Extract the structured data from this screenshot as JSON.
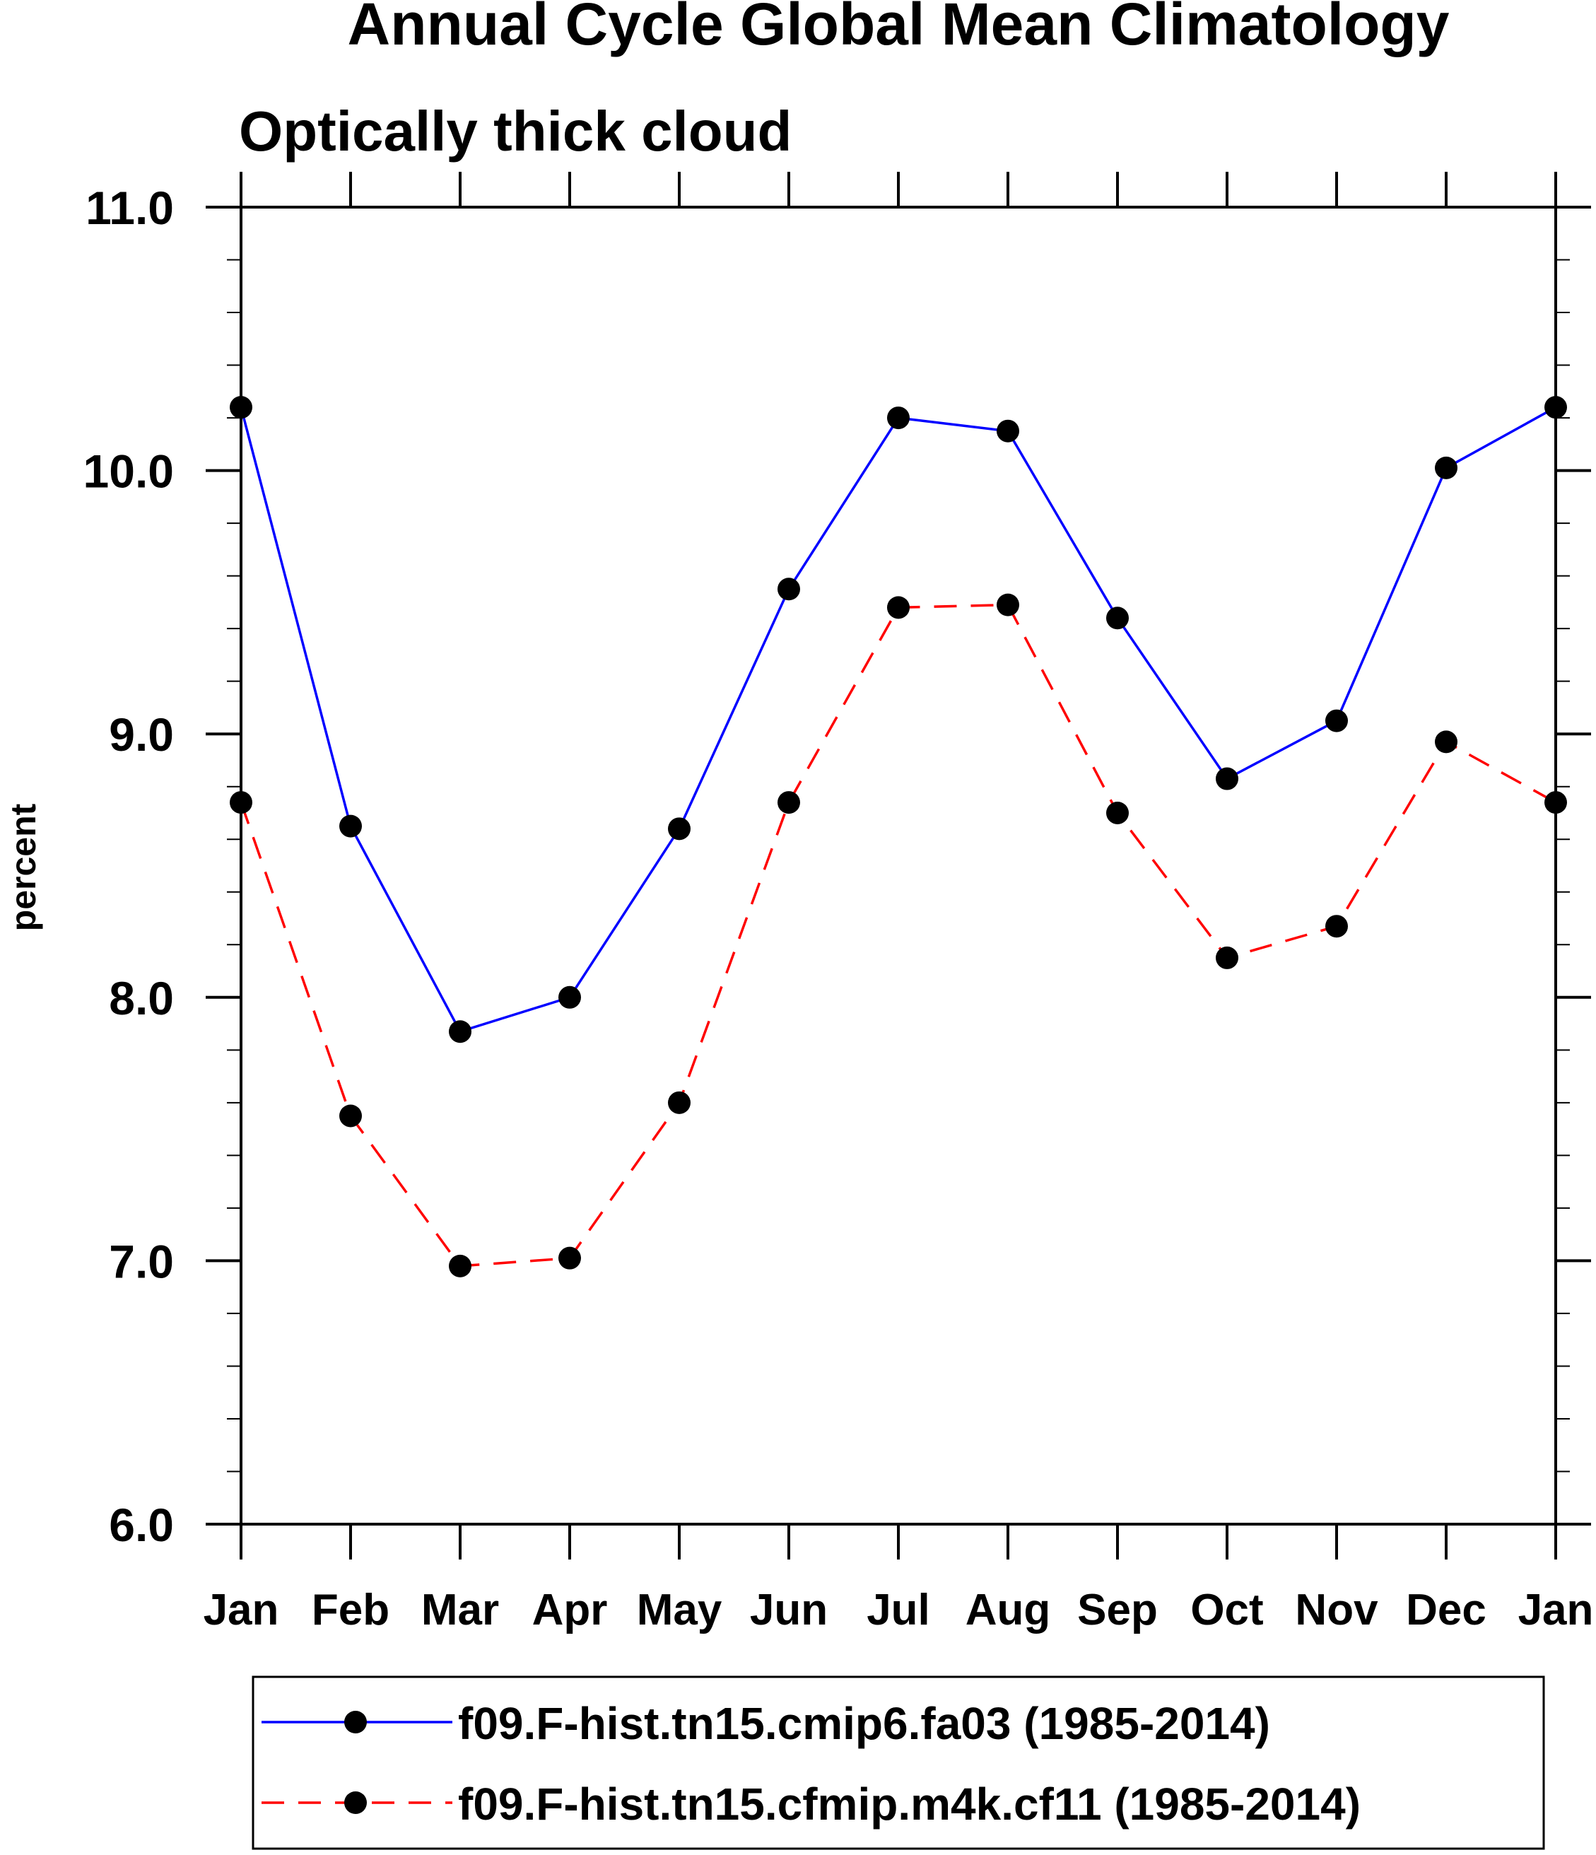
{
  "chart_data": {
    "type": "line",
    "title": "Annual Cycle Global Mean Climatology",
    "subtitle": "Optically thick cloud",
    "xlabel": "",
    "ylabel": "percent",
    "categories": [
      "Jan",
      "Feb",
      "Mar",
      "Apr",
      "May",
      "Jun",
      "Jul",
      "Aug",
      "Sep",
      "Oct",
      "Nov",
      "Dec",
      "Jan"
    ],
    "ylim": [
      6.0,
      11.0
    ],
    "yticks": [
      "6.0",
      "7.0",
      "8.0",
      "9.0",
      "10.0",
      "11.0"
    ],
    "y_minor_step": 0.2,
    "grid": false,
    "legend_position": "bottom",
    "series": [
      {
        "name": "f09.F-hist.tn15.cmip6.fa03 (1985-2014)",
        "color": "#0000ff",
        "line_style": "solid",
        "marker": "filled-circle",
        "values": [
          10.24,
          8.65,
          7.87,
          8.0,
          8.64,
          9.55,
          10.2,
          10.15,
          9.44,
          8.83,
          9.05,
          10.01,
          10.24
        ]
      },
      {
        "name": "f09.F-hist.tn15.cfmip.m4k.cf11 (1985-2014)",
        "color": "#ff0000",
        "line_style": "dashed",
        "marker": "filled-circle",
        "values": [
          8.74,
          7.55,
          6.98,
          7.01,
          7.6,
          8.74,
          9.48,
          9.49,
          8.7,
          8.15,
          8.27,
          8.97,
          8.74
        ]
      }
    ]
  }
}
